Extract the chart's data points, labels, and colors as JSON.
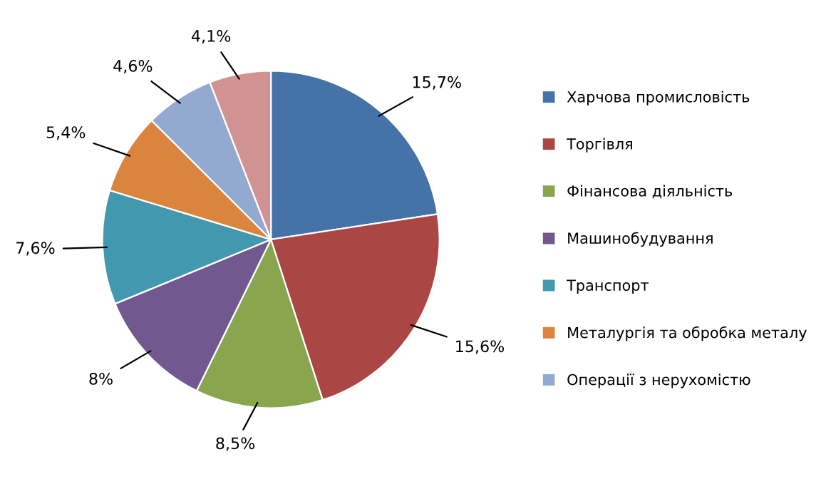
{
  "chart_data": {
    "type": "pie",
    "categories": [
      "Харчова промисловість",
      "Торгівля",
      "Фінансова діяльність",
      "Машинобудування",
      "Транспорт",
      "Металургія та обробка металу",
      "Операції з нерухомістю",
      null
    ],
    "values": [
      15.7,
      15.6,
      8.5,
      8,
      7.6,
      5.4,
      4.6,
      4.1
    ],
    "value_labels": [
      "15,7%",
      "15,6%",
      "8,5%",
      "8%",
      "7,6%",
      "5,4%",
      "4,6%",
      "4,1%"
    ],
    "colors": [
      "#4572a7",
      "#aa4643",
      "#89a54e",
      "#71588f",
      "#4198af",
      "#db843d",
      "#93a9cf",
      "#d19392"
    ],
    "legend": "right"
  }
}
